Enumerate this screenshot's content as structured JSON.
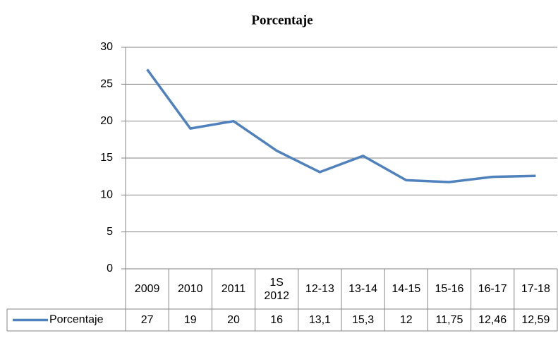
{
  "chart_data": {
    "type": "line",
    "title": "Porcentaje",
    "categories": [
      "2009",
      "2010",
      "2011",
      "1S 2012",
      "12-13",
      "13-14",
      "14-15",
      "15-16",
      "16-17",
      "17-18"
    ],
    "series": [
      {
        "name": "Porcentaje",
        "color": "#4f81bd",
        "values": [
          27,
          19,
          20,
          16,
          13.1,
          15.3,
          12,
          11.75,
          12.46,
          12.59
        ],
        "value_labels": [
          "27",
          "19",
          "20",
          "16",
          "13,1",
          "15,3",
          "12",
          "11,75",
          "12,46",
          "12,59"
        ]
      }
    ],
    "ylim": [
      0,
      30
    ],
    "yticks": [
      0,
      5,
      10,
      15,
      20,
      25,
      30
    ],
    "grid": true
  }
}
